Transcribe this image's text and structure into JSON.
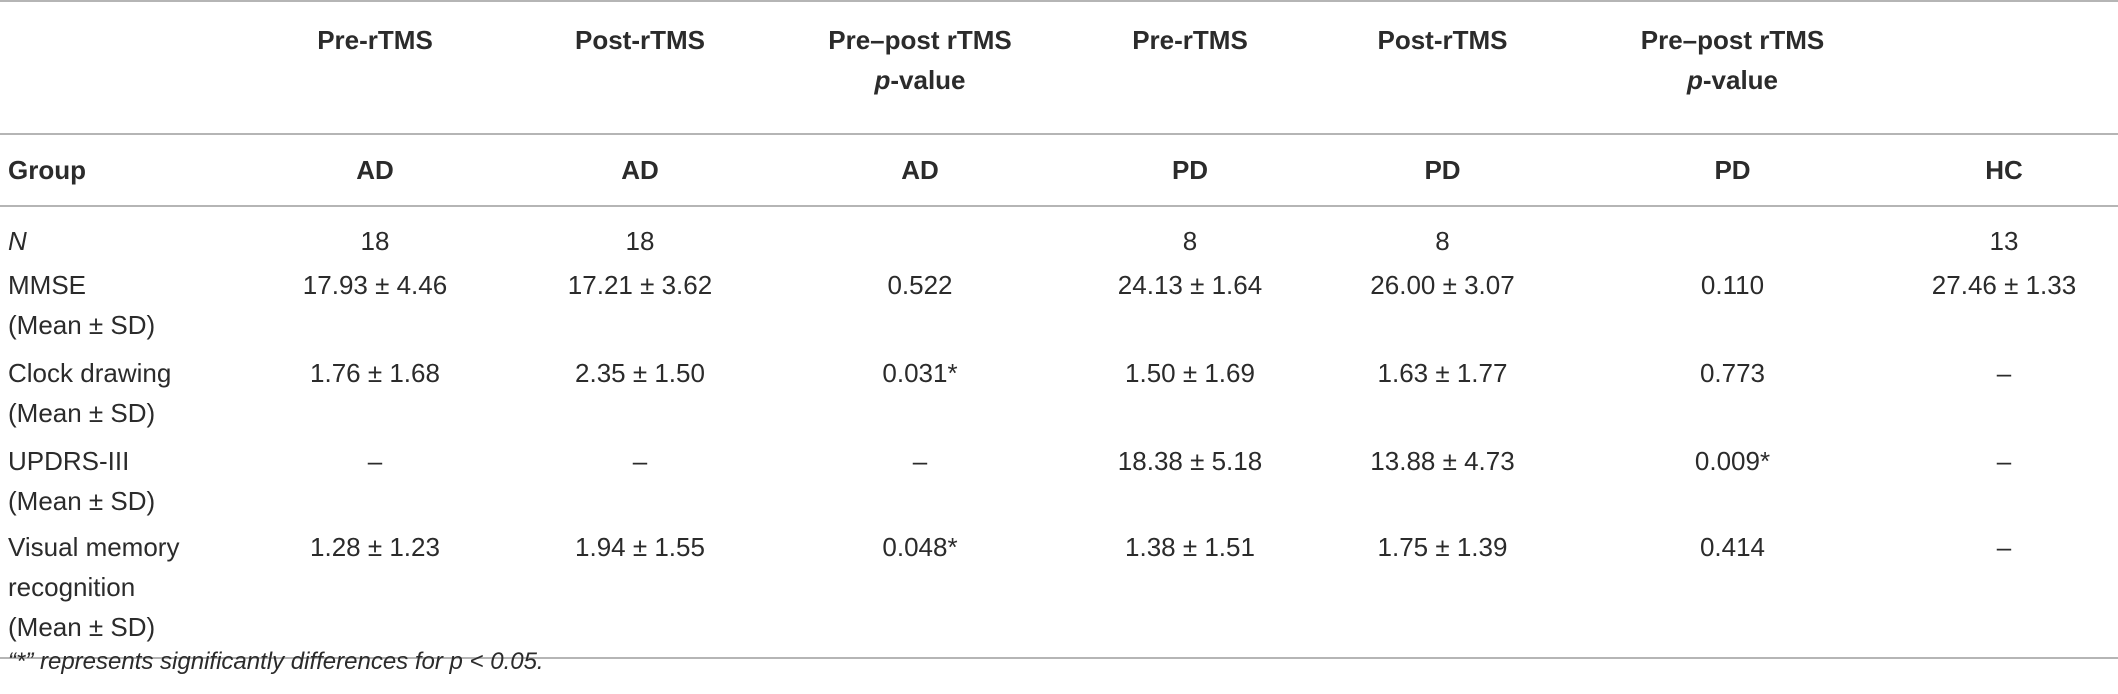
{
  "header_row1": [
    "",
    "Pre-rTMS",
    "Post-rTMS",
    "Pre–post rTMS",
    "Pre-rTMS",
    "Post-rTMS",
    "Pre–post rTMS",
    ""
  ],
  "pvalue_label": "p",
  "pvalue_suffix": "-value",
  "header_row2": [
    "Group",
    "AD",
    "AD",
    "AD",
    "PD",
    "PD",
    "PD",
    "HC"
  ],
  "rows": [
    {
      "label": "N",
      "values": [
        "18",
        "18",
        "",
        "8",
        "8",
        "",
        "13"
      ]
    },
    {
      "label": "MMSE",
      "sublabel": "(Mean ± SD)",
      "values": [
        "17.93 ± 4.46",
        "17.21 ± 3.62",
        "0.522",
        "24.13 ± 1.64",
        "26.00 ± 3.07",
        "0.110",
        "27.46 ± 1.33"
      ]
    },
    {
      "label": "Clock drawing",
      "sublabel": "(Mean ± SD)",
      "values": [
        "1.76 ± 1.68",
        "2.35 ± 1.50",
        "0.031*",
        "1.50 ± 1.69",
        "1.63 ± 1.77",
        "0.773",
        "–"
      ]
    },
    {
      "label": "UPDRS-III",
      "sublabel": "(Mean ± SD)",
      "values": [
        "–",
        "–",
        "–",
        "18.38 ± 5.18",
        "13.88 ± 4.73",
        "0.009*",
        "–"
      ]
    },
    {
      "label": "Visual memory",
      "label2": "recognition",
      "sublabel": "(Mean ± SD)",
      "values": [
        "1.28 ± 1.23",
        "1.94 ± 1.55",
        "0.048*",
        "1.38 ± 1.51",
        "1.75 ± 1.39",
        "0.414",
        "–"
      ]
    }
  ],
  "footnote": "“*” represents significantly differences for p < 0.05."
}
